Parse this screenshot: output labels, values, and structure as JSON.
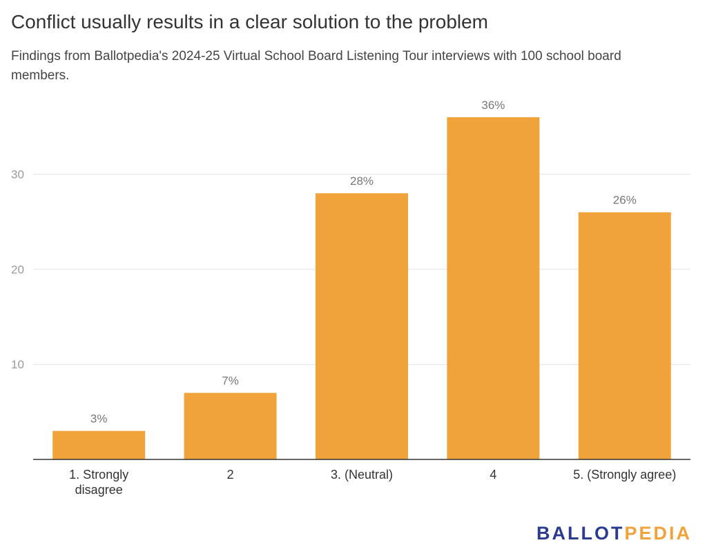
{
  "chart_data": {
    "type": "bar",
    "title": "Conflict usually results in a clear solution to the problem",
    "subtitle": "Findings from Ballotpedia's 2024-25 Virtual School Board Listening Tour interviews with 100 school board members.",
    "categories": [
      [
        "1. Strongly",
        "disagree"
      ],
      [
        "2"
      ],
      [
        "3. (Neutral)"
      ],
      [
        "4"
      ],
      [
        "5. (Strongly agree)"
      ]
    ],
    "values": [
      3,
      7,
      28,
      36,
      26
    ],
    "data_labels": [
      "3%",
      "7%",
      "28%",
      "36%",
      "26%"
    ],
    "y_ticks": [
      10,
      20,
      30
    ],
    "ylim": [
      0,
      36
    ],
    "grid": true,
    "bar_color": "#F0A33A",
    "xlabel": "",
    "ylabel": ""
  },
  "branding": {
    "logo_part1": "BALLOT",
    "logo_part2": "PEDIA",
    "logo_color1": "#2B3C8F",
    "logo_color2": "#F0A33A"
  }
}
